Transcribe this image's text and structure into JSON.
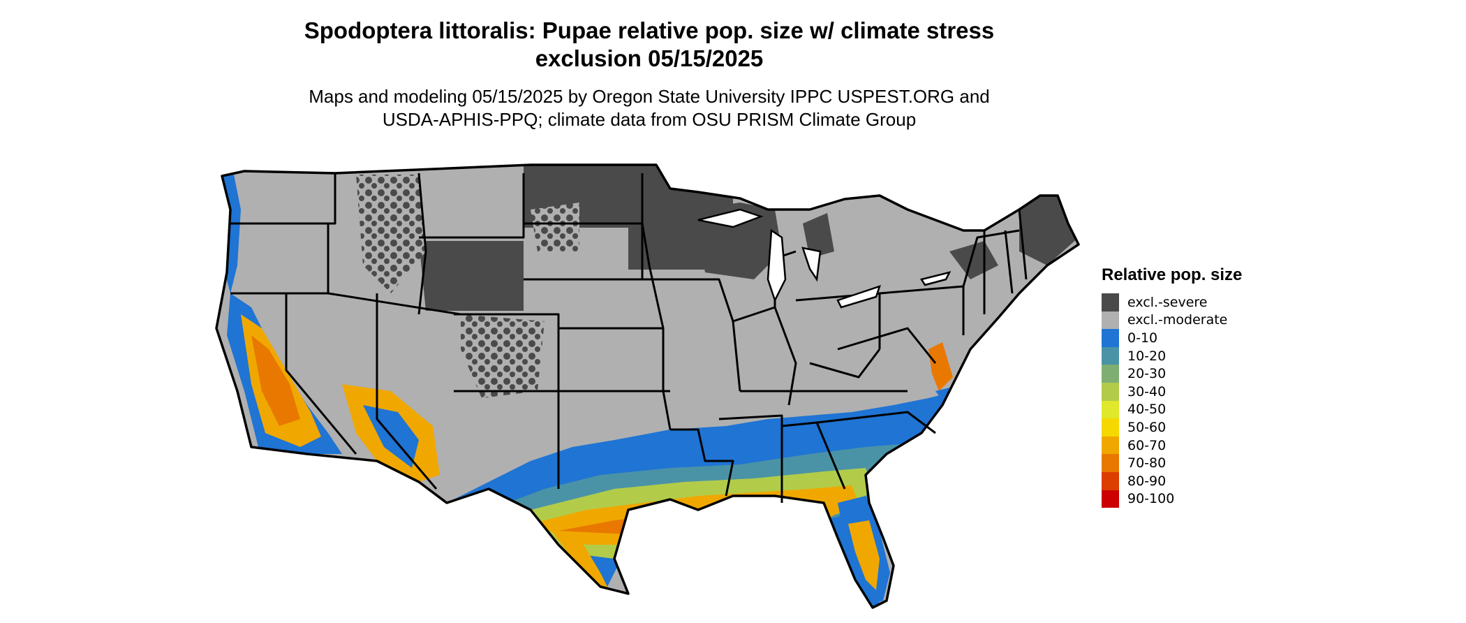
{
  "title": {
    "line1": "Spodoptera littoralis: Pupae relative pop. size w/ climate stress",
    "line2": "exclusion 05/15/2025"
  },
  "subtitle": {
    "line1": "Maps and modeling 05/15/2025 by Oregon State University IPPC USPEST.ORG and",
    "line2": "USDA-APHIS-PPQ; climate data from OSU PRISM Climate Group"
  },
  "legend": {
    "title": "Relative pop. size",
    "items": [
      {
        "label": "excl.-severe",
        "color": "#4a4a4a"
      },
      {
        "label": "excl.-moderate",
        "color": "#b0b0b0"
      },
      {
        "label": "0-10",
        "color": "#1f74d4"
      },
      {
        "label": "10-20",
        "color": "#4a93a6"
      },
      {
        "label": "20-30",
        "color": "#7fae73"
      },
      {
        "label": "30-40",
        "color": "#b2cc4a"
      },
      {
        "label": "40-50",
        "color": "#dfe82a"
      },
      {
        "label": "50-60",
        "color": "#f5d800"
      },
      {
        "label": "60-70",
        "color": "#f0a800"
      },
      {
        "label": "70-80",
        "color": "#e87800"
      },
      {
        "label": "80-90",
        "color": "#dc3d00"
      },
      {
        "label": "90-100",
        "color": "#cc0000"
      }
    ]
  }
}
